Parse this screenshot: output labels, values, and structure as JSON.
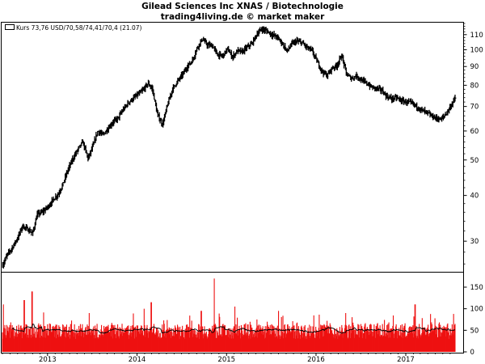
{
  "title_line1": "Gilead Sciences Inc XNAS / Biotechnologie",
  "title_line2": "trading4living.de © market maker",
  "legend": "Kurs 73,76 USD/70,58/74,41/70,4 (21.07)",
  "chart_data": [
    {
      "type": "ohlc",
      "name": "Kurs",
      "yscale": "log",
      "ylim": [
        25,
        118
      ],
      "yticks": [
        30,
        40,
        50,
        60,
        70,
        80,
        90,
        100,
        110
      ],
      "xlim": [
        "2012-07-01",
        "2017-07-31"
      ],
      "xticks": [
        "2013",
        "2014",
        "2015",
        "2016",
        "2017"
      ],
      "grid": false,
      "legend_position": "top-left",
      "close_series": [
        [
          "2012-07-02",
          25.8
        ],
        [
          "2012-07-20",
          27.5
        ],
        [
          "2012-08-10",
          28.8
        ],
        [
          "2012-09-03",
          30.8
        ],
        [
          "2012-09-20",
          33.0
        ],
        [
          "2012-10-10",
          32.4
        ],
        [
          "2012-11-01",
          31.5
        ],
        [
          "2012-11-20",
          35.5
        ],
        [
          "2012-12-10",
          36.0
        ],
        [
          "2013-01-02",
          37.2
        ],
        [
          "2013-01-25",
          39.0
        ],
        [
          "2013-02-15",
          40.5
        ],
        [
          "2013-03-05",
          43.0
        ],
        [
          "2013-03-25",
          47.0
        ],
        [
          "2013-04-15",
          50.5
        ],
        [
          "2013-05-05",
          53.5
        ],
        [
          "2013-05-25",
          56.0
        ],
        [
          "2013-06-15",
          50.5
        ],
        [
          "2013-07-05",
          54.5
        ],
        [
          "2013-07-25",
          60.0
        ],
        [
          "2013-08-15",
          58.5
        ],
        [
          "2013-09-05",
          61.0
        ],
        [
          "2013-09-25",
          63.5
        ],
        [
          "2013-10-15",
          65.0
        ],
        [
          "2013-11-05",
          68.5
        ],
        [
          "2013-11-25",
          71.5
        ],
        [
          "2013-12-15",
          73.5
        ],
        [
          "2014-01-05",
          75.5
        ],
        [
          "2014-01-25",
          77.5
        ],
        [
          "2014-02-15",
          81.0
        ],
        [
          "2014-03-05",
          78.0
        ],
        [
          "2014-03-25",
          66.5
        ],
        [
          "2014-04-15",
          62.5
        ],
        [
          "2014-05-05",
          70.5
        ],
        [
          "2014-05-25",
          78.0
        ],
        [
          "2014-06-15",
          82.0
        ],
        [
          "2014-07-05",
          85.5
        ],
        [
          "2014-07-25",
          90.0
        ],
        [
          "2014-08-15",
          93.5
        ],
        [
          "2014-09-05",
          102.0
        ],
        [
          "2014-09-25",
          107.0
        ],
        [
          "2014-10-15",
          103.0
        ],
        [
          "2014-11-05",
          102.5
        ],
        [
          "2014-11-25",
          97.0
        ],
        [
          "2014-12-15",
          96.0
        ],
        [
          "2015-01-05",
          100.5
        ],
        [
          "2015-01-25",
          95.5
        ],
        [
          "2015-02-15",
          99.5
        ],
        [
          "2015-03-05",
          98.5
        ],
        [
          "2015-03-25",
          101.5
        ],
        [
          "2015-04-15",
          104.0
        ],
        [
          "2015-05-05",
          110.5
        ],
        [
          "2015-05-25",
          114.0
        ],
        [
          "2015-06-15",
          112.5
        ],
        [
          "2015-07-05",
          110.0
        ],
        [
          "2015-07-25",
          108.5
        ],
        [
          "2015-08-15",
          104.5
        ],
        [
          "2015-09-05",
          99.0
        ],
        [
          "2015-09-25",
          104.0
        ],
        [
          "2015-10-15",
          105.5
        ],
        [
          "2015-11-05",
          104.5
        ],
        [
          "2015-11-25",
          101.5
        ],
        [
          "2015-12-15",
          99.5
        ],
        [
          "2016-01-05",
          93.0
        ],
        [
          "2016-01-25",
          87.5
        ],
        [
          "2016-02-15",
          85.0
        ],
        [
          "2016-03-05",
          89.0
        ],
        [
          "2016-03-25",
          90.5
        ],
        [
          "2016-04-15",
          96.5
        ],
        [
          "2016-05-05",
          85.5
        ],
        [
          "2016-05-25",
          83.5
        ],
        [
          "2016-06-15",
          85.0
        ],
        [
          "2016-07-05",
          82.5
        ],
        [
          "2016-07-25",
          81.0
        ],
        [
          "2016-08-15",
          79.0
        ],
        [
          "2016-09-05",
          78.5
        ],
        [
          "2016-09-25",
          77.5
        ],
        [
          "2016-10-15",
          74.5
        ],
        [
          "2016-11-05",
          73.5
        ],
        [
          "2016-11-25",
          74.0
        ],
        [
          "2016-12-15",
          72.5
        ],
        [
          "2017-01-05",
          72.0
        ],
        [
          "2017-01-25",
          71.5
        ],
        [
          "2017-02-15",
          70.0
        ],
        [
          "2017-03-05",
          68.5
        ],
        [
          "2017-03-25",
          67.5
        ],
        [
          "2017-04-15",
          66.0
        ],
        [
          "2017-05-05",
          65.0
        ],
        [
          "2017-05-25",
          64.5
        ],
        [
          "2017-06-15",
          67.0
        ],
        [
          "2017-07-05",
          70.5
        ],
        [
          "2017-07-21",
          73.76
        ]
      ]
    },
    {
      "type": "bar",
      "name": "Volume",
      "ylim": [
        0,
        180
      ],
      "yticks": [
        0,
        50,
        100,
        150
      ],
      "moving_average": true,
      "bar_color": "#ee1111",
      "spikes": [
        [
          "2012-07-05",
          110
        ],
        [
          "2012-09-28",
          120
        ],
        [
          "2012-10-30",
          140
        ],
        [
          "2013-06-20",
          90
        ],
        [
          "2014-01-30",
          100
        ],
        [
          "2014-02-28",
          115
        ],
        [
          "2014-09-20",
          95
        ],
        [
          "2014-11-12",
          170
        ],
        [
          "2015-02-04",
          105
        ],
        [
          "2015-08-01",
          95
        ],
        [
          "2016-05-01",
          90
        ],
        [
          "2017-02-08",
          110
        ],
        [
          "2017-07-15",
          88
        ]
      ]
    }
  ],
  "colors": {
    "price": "#000000",
    "volume_bar": "#ee1111",
    "volume_ma": "#000000",
    "frame": "#000000"
  }
}
